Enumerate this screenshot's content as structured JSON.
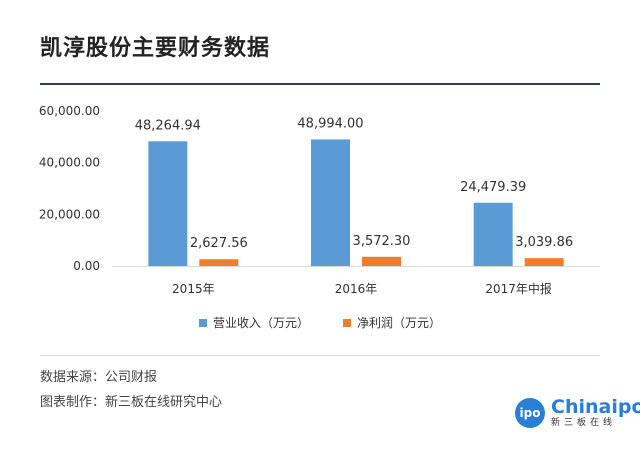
{
  "title": "凯淳股份主要财务数据",
  "chart_data": {
    "type": "bar",
    "categories": [
      "2015年",
      "2016年",
      "2017年中报"
    ],
    "series": [
      {
        "name": "营业收入（万元）",
        "color": "#5b9bd5",
        "values": [
          48264.94,
          48994.0,
          24479.39
        ],
        "labels": [
          "48,264.94",
          "48,994.00",
          "24,479.39"
        ]
      },
      {
        "name": "净利润（万元）",
        "color": "#ed7d31",
        "values": [
          2627.56,
          3572.3,
          3039.86
        ],
        "labels": [
          "2,627.56",
          "3,572.30",
          "3,039.86"
        ]
      }
    ],
    "ylim": [
      0,
      60000
    ],
    "yticks": [
      0,
      20000,
      40000,
      60000
    ],
    "ytick_labels": [
      "0.00",
      "20,000.00",
      "40,000.00",
      "60,000.00"
    ],
    "grid": false,
    "legend": "bottom"
  },
  "footer": {
    "source": "数据来源：公司财报",
    "maker": "图表制作：新三板在线研究中心"
  },
  "logo": {
    "circle_text": "ipo",
    "name": "Chinaipo",
    "sub": "新三板在线"
  }
}
